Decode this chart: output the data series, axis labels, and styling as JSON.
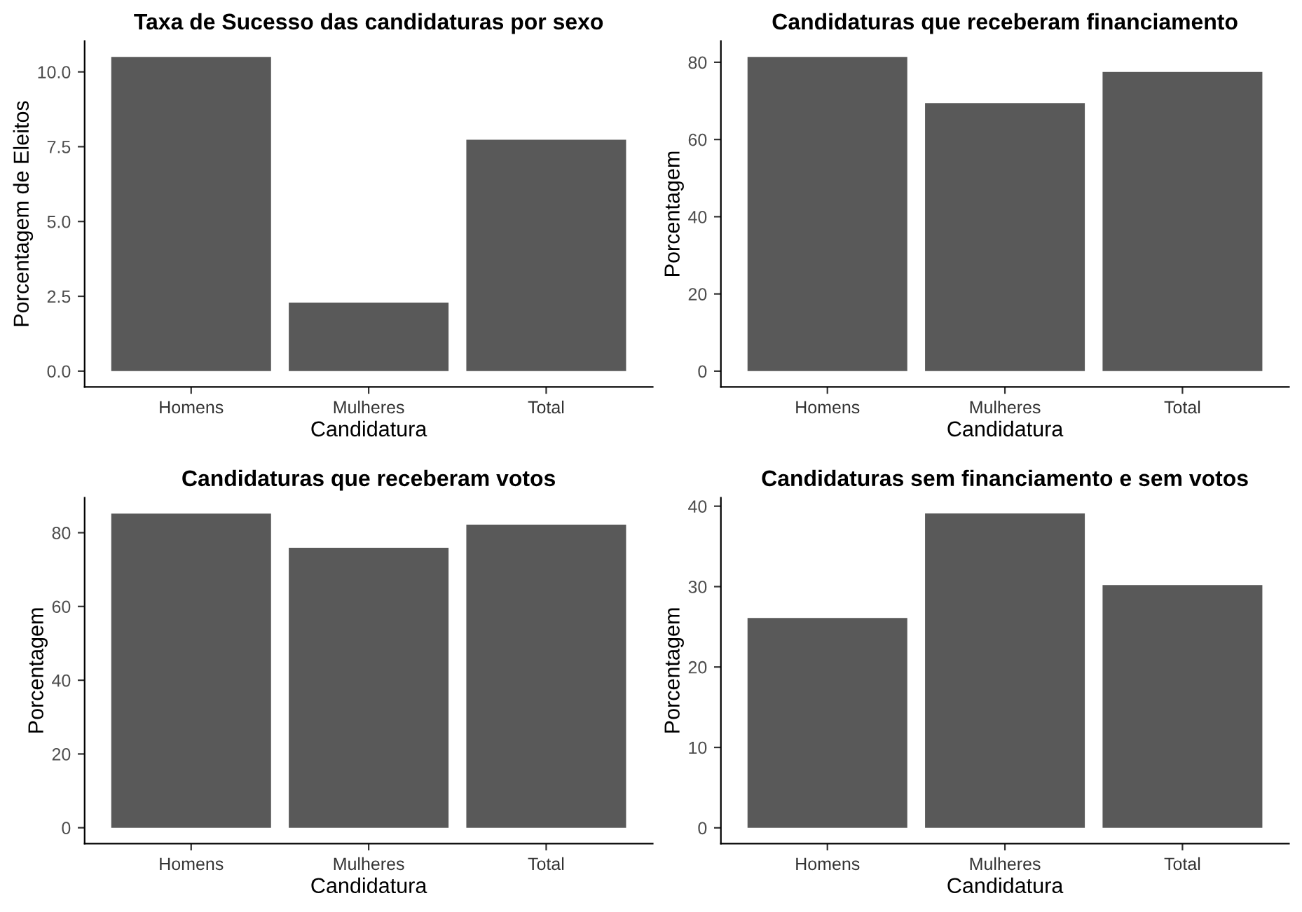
{
  "chart_data": [
    {
      "type": "bar",
      "title": "Taxa de Sucesso das candidaturas por sexo",
      "xlabel": "Candidatura",
      "ylabel": "Porcentagem de Eleitos",
      "categories": [
        "Homens",
        "Mulheres",
        "Total"
      ],
      "values": [
        10.5,
        2.29,
        7.73
      ],
      "color": "#595959",
      "ylim": [
        -0.53,
        11.03
      ],
      "yticks": [
        {
          "value": 0,
          "label": "0.0"
        },
        2.5,
        {
          "value": 5,
          "label": "5.0"
        },
        7.5,
        {
          "value": 10,
          "label": "10.0"
        }
      ],
      "grid": false
    },
    {
      "type": "bar",
      "title": "Candidaturas que receberam financiamento",
      "xlabel": "Candidatura",
      "ylabel": "Porcentagem",
      "categories": [
        "Homens",
        "Mulheres",
        "Total"
      ],
      "values": [
        81.4,
        69.4,
        77.5
      ],
      "color": "#595959",
      "ylim": [
        -4.1,
        85.5
      ],
      "yticks": [
        0,
        20,
        40,
        60,
        80
      ],
      "grid": false
    },
    {
      "type": "bar",
      "title": "Candidaturas que receberam votos",
      "xlabel": "Candidatura",
      "ylabel": "Porcentagem",
      "categories": [
        "Homens",
        "Mulheres",
        "Total"
      ],
      "values": [
        85.2,
        75.9,
        82.2
      ],
      "color": "#595959",
      "ylim": [
        -4.3,
        89.5
      ],
      "yticks": [
        0,
        20,
        40,
        60,
        80
      ],
      "grid": false
    },
    {
      "type": "bar",
      "title": "Candidaturas sem financiamento e sem votos",
      "xlabel": "Candidatura",
      "ylabel": "Porcentagem",
      "categories": [
        "Homens",
        "Mulheres",
        "Total"
      ],
      "values": [
        26.1,
        39.1,
        30.2
      ],
      "color": "#595959",
      "ylim": [
        -1.96,
        41.06
      ],
      "yticks": [
        0,
        10,
        20,
        30,
        40
      ],
      "grid": false
    }
  ]
}
